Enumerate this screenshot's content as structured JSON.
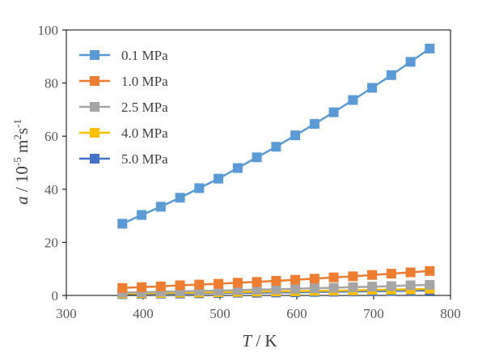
{
  "chart_data": {
    "type": "line",
    "xlabel": {
      "var": "T",
      "unit": " / K"
    },
    "ylabel": {
      "var": "a",
      "unit": " / 10",
      "exp1": "-5",
      "mid": " m",
      "exp2": "2",
      "s": "s",
      "exp3": "-1"
    },
    "xlim": [
      300,
      800
    ],
    "ylim": [
      0,
      100
    ],
    "x_ticks": [
      "300",
      "400",
      "500",
      "600",
      "700",
      "800"
    ],
    "y_ticks": [
      "0",
      "20",
      "40",
      "60",
      "80",
      "100"
    ],
    "grid": false,
    "legend_position": "top-left",
    "x": [
      373,
      398,
      423,
      448,
      473,
      498,
      523,
      548,
      573,
      598,
      623,
      648,
      673,
      698,
      723,
      748,
      773
    ],
    "series": [
      {
        "name": "0.1 MPa",
        "color": "#5b9bd5",
        "values": [
          27.0,
          30.3,
          33.4,
          36.8,
          40.4,
          44.0,
          48.0,
          52.0,
          56.0,
          60.3,
          64.6,
          69.0,
          73.6,
          78.2,
          83.0,
          88.0,
          93.0
        ]
      },
      {
        "name": "1.0 MPa",
        "color": "#ed7d31",
        "values": [
          2.8,
          3.1,
          3.4,
          3.8,
          4.1,
          4.4,
          4.8,
          5.1,
          5.5,
          5.9,
          6.3,
          6.8,
          7.2,
          7.7,
          8.2,
          8.7,
          9.2
        ]
      },
      {
        "name": "2.5 MPa",
        "color": "#a5a5a5",
        "values": [
          1.1,
          1.2,
          1.4,
          1.5,
          1.7,
          1.8,
          2.0,
          2.2,
          2.3,
          2.5,
          2.7,
          2.9,
          3.1,
          3.3,
          3.5,
          3.8,
          4.0
        ]
      },
      {
        "name": "4.0 MPa",
        "color": "#ffc000",
        "values": [
          0.7,
          0.8,
          0.9,
          1.0,
          1.1,
          1.2,
          1.3,
          1.4,
          1.5,
          1.6,
          1.7,
          1.8,
          1.9,
          2.1,
          2.2,
          2.3,
          2.5
        ]
      },
      {
        "name": "5.0 MPa",
        "color": "#4472c4",
        "values": [
          0.5,
          0.6,
          0.7,
          0.7,
          0.8,
          0.9,
          1.0,
          1.0,
          1.1,
          1.2,
          1.3,
          1.4,
          1.5,
          1.6,
          1.7,
          1.8,
          1.9
        ]
      }
    ]
  }
}
